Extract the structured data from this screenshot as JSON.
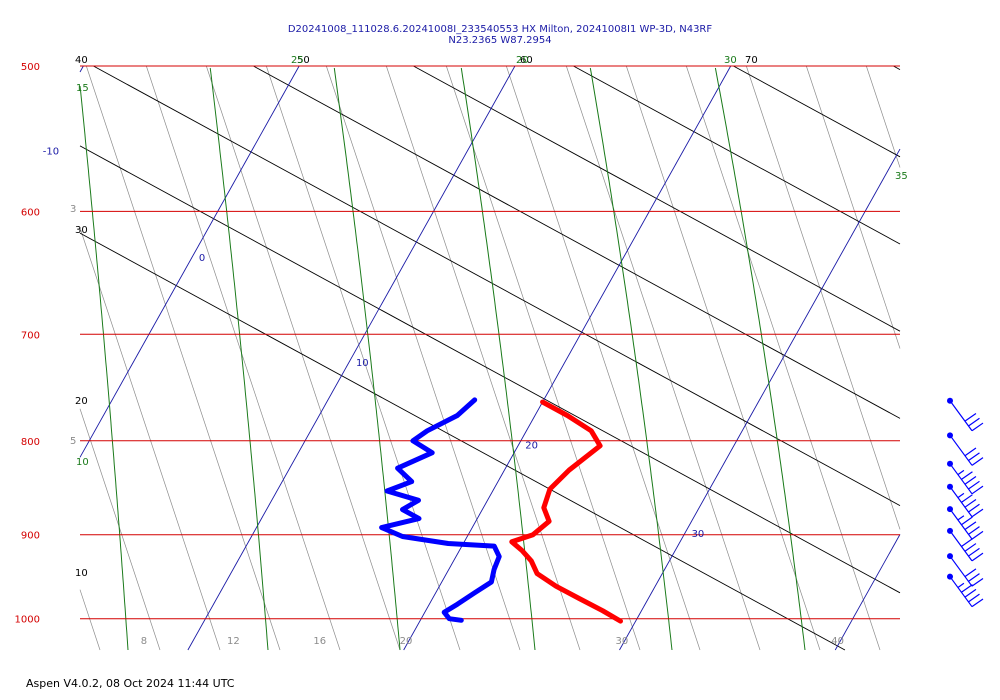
{
  "title_line1": "D20241008_111028.6.20241008I_233540553 HX Milton, 20241008I1 WP-3D, N43RF",
  "title_line2": "N23.2365 W87.2954",
  "footer": "Aspen V4.0.2, 08 Oct 2024  11:44 UTC",
  "colors": {
    "isobar": "#d40000",
    "dry_adiabat": "#000000",
    "isotherm": "#1a1aa6",
    "moist_adiabat": "#1a7a1a",
    "mixing_ratio": "#8c8c8c",
    "temperature": "#ff0000",
    "dewpoint": "#0000ff",
    "wind_barb": "#0000ff"
  },
  "chart_data": {
    "type": "skew-t",
    "pressure_range_hPa": [
      1040,
      500
    ],
    "temperature_range_bottom_C": [
      5,
      43
    ],
    "pressure_ticks": [
      "500",
      "600",
      "700",
      "800",
      "900",
      "1000"
    ],
    "isotherm_labels": [
      "-10",
      "0",
      "10",
      "20",
      "30"
    ],
    "bottom_scale_labels": [
      "8",
      "12",
      "16",
      "20",
      "30",
      "40"
    ],
    "dry_adiabat_labels": [
      "40",
      "30",
      "20",
      "10",
      "50",
      "60",
      "70"
    ],
    "moist_adiabat_labels": [
      "15",
      "10",
      "25",
      "20",
      "30",
      "35"
    ],
    "mixing_ratio_labels": [
      "3",
      "5"
    ],
    "temperature_profile": [
      {
        "p": 762,
        "t": 20.0
      },
      {
        "p": 775,
        "t": 21.5
      },
      {
        "p": 790,
        "t": 23.0
      },
      {
        "p": 805,
        "t": 23.8
      },
      {
        "p": 830,
        "t": 23.0
      },
      {
        "p": 850,
        "t": 22.6
      },
      {
        "p": 870,
        "t": 22.8
      },
      {
        "p": 885,
        "t": 23.4
      },
      {
        "p": 900,
        "t": 23.0
      },
      {
        "p": 908,
        "t": 22.2
      },
      {
        "p": 918,
        "t": 22.9
      },
      {
        "p": 930,
        "t": 23.6
      },
      {
        "p": 945,
        "t": 24.2
      },
      {
        "p": 960,
        "t": 25.4
      },
      {
        "p": 975,
        "t": 26.8
      },
      {
        "p": 990,
        "t": 28.2
      },
      {
        "p": 1003,
        "t": 29.3
      }
    ],
    "dewpoint_profile": [
      {
        "p": 760,
        "t": 16.8
      },
      {
        "p": 775,
        "t": 16.4
      },
      {
        "p": 790,
        "t": 15.4
      },
      {
        "p": 800,
        "t": 15.0
      },
      {
        "p": 812,
        "t": 16.2
      },
      {
        "p": 828,
        "t": 15.0
      },
      {
        "p": 842,
        "t": 16.0
      },
      {
        "p": 852,
        "t": 15.1
      },
      {
        "p": 862,
        "t": 16.8
      },
      {
        "p": 872,
        "t": 16.3
      },
      {
        "p": 882,
        "t": 17.3
      },
      {
        "p": 892,
        "t": 15.8
      },
      {
        "p": 902,
        "t": 17.0
      },
      {
        "p": 910,
        "t": 19.3
      },
      {
        "p": 913,
        "t": 21.5
      },
      {
        "p": 925,
        "t": 22.0
      },
      {
        "p": 940,
        "t": 22.1
      },
      {
        "p": 955,
        "t": 22.3
      },
      {
        "p": 968,
        "t": 21.8
      },
      {
        "p": 982,
        "t": 21.3
      },
      {
        "p": 992,
        "t": 20.9
      },
      {
        "p": 1000,
        "t": 21.3
      },
      {
        "p": 1002,
        "t": 21.9
      }
    ],
    "wind_barbs": [
      {
        "p": 790,
        "speed_kt": 30
      },
      {
        "p": 825,
        "speed_kt": 30
      },
      {
        "p": 855,
        "speed_kt": 35
      },
      {
        "p": 880,
        "speed_kt": 35
      },
      {
        "p": 905,
        "speed_kt": 35
      },
      {
        "p": 930,
        "speed_kt": 40
      },
      {
        "p": 960,
        "speed_kt": 30
      },
      {
        "p": 985,
        "speed_kt": 35
      }
    ]
  }
}
